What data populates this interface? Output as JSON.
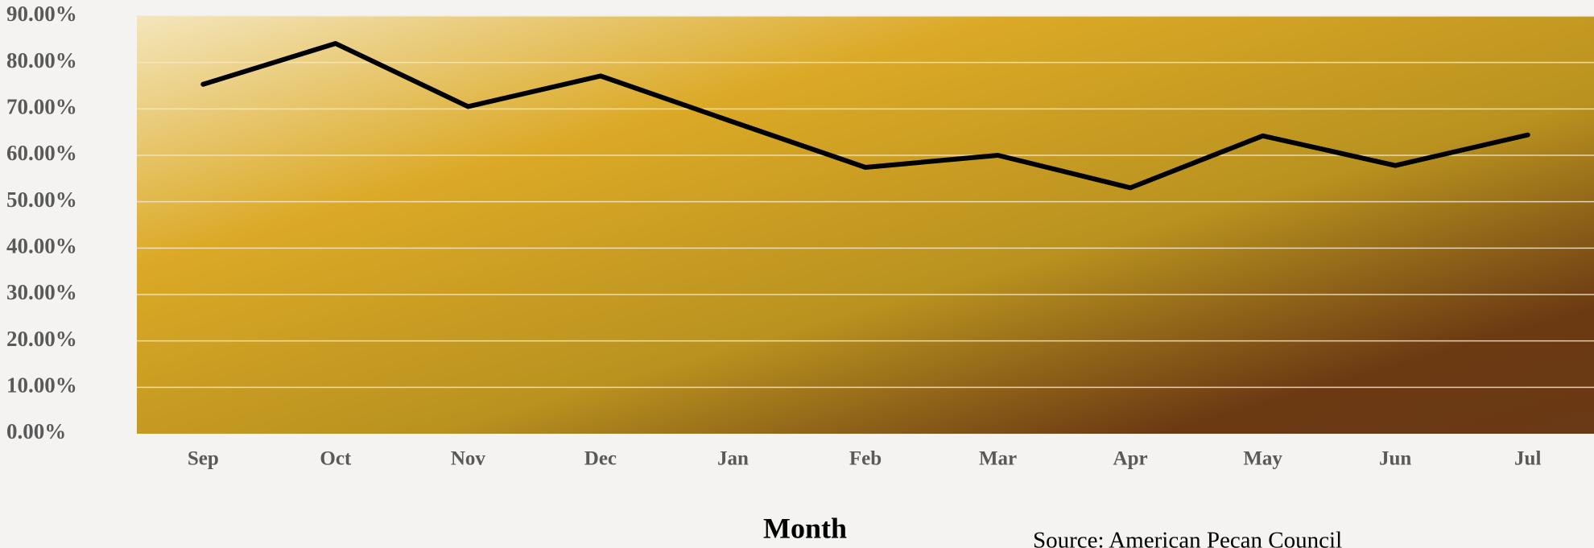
{
  "chart_data": {
    "type": "line",
    "categories": [
      "Sep",
      "Oct",
      "Nov",
      "Dec",
      "Jan",
      "Feb",
      "Mar",
      "Apr",
      "May",
      "Jun",
      "Jul"
    ],
    "values": [
      75.3,
      84.1,
      70.5,
      77.1,
      67.2,
      57.4,
      60.0,
      53.0,
      64.2,
      57.8,
      64.4
    ],
    "color": "#000000",
    "ylim": [
      0,
      90
    ],
    "yticks": [
      {
        "value": 0,
        "label": "0.00%"
      },
      {
        "value": 10,
        "label": "10.00%"
      },
      {
        "value": 20,
        "label": "20.00%"
      },
      {
        "value": 30,
        "label": "30.00%"
      },
      {
        "value": 40,
        "label": "40.00%"
      },
      {
        "value": 50,
        "label": "50.00%"
      },
      {
        "value": 60,
        "label": "60.00%"
      },
      {
        "value": 70,
        "label": "70.00%"
      },
      {
        "value": 80,
        "label": "80.00%"
      },
      {
        "value": 90,
        "label": "90.00%"
      }
    ],
    "grid": true,
    "xlabel": "Month",
    "annotation": "Source: American Pecan Council"
  }
}
